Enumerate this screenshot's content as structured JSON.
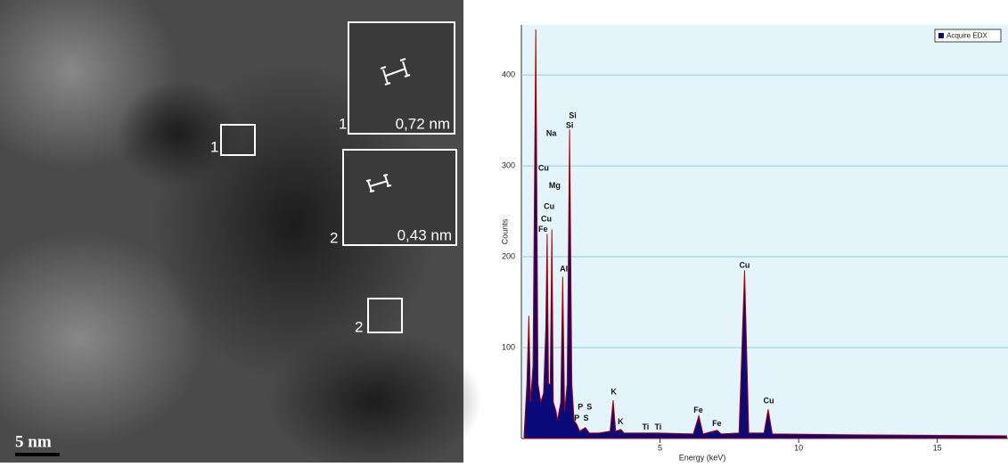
{
  "image": {
    "regions": [
      {
        "label": "1"
      },
      {
        "label": "2"
      }
    ],
    "insets": [
      {
        "label": "1",
        "scale": "0,72 nm"
      },
      {
        "label": "2",
        "scale": "0,43 nm"
      }
    ],
    "scale_bar": "5 nm"
  },
  "chart_data": {
    "type": "area",
    "xlabel": "Energy (keV)",
    "ylabel": "Counts",
    "xlim": [
      0,
      17.55
    ],
    "ylim": [
      0,
      455
    ],
    "xticks": [
      5,
      10,
      15
    ],
    "yticks": [
      100,
      200,
      300,
      400
    ],
    "grid": true,
    "legend": "top-right",
    "series": [
      {
        "name": "Acquire EDX",
        "color": "#0a0a7a",
        "edge": "#b00000",
        "x": [
          0.1,
          0.2,
          0.27,
          0.33,
          0.42,
          0.52,
          0.6,
          0.7,
          0.8,
          0.88,
          0.93,
          0.98,
          1.04,
          1.1,
          1.15,
          1.25,
          1.3,
          1.42,
          1.49,
          1.56,
          1.65,
          1.74,
          1.82,
          1.9,
          2.01,
          2.1,
          2.31,
          2.45,
          2.8,
          3.2,
          3.31,
          3.4,
          3.59,
          3.7,
          4.5,
          4.93,
          6.2,
          6.4,
          6.55,
          7.06,
          7.2,
          7.85,
          8.05,
          8.2,
          8.75,
          8.9,
          9.05,
          12,
          17.5
        ],
        "values": [
          5,
          60,
          135,
          40,
          80,
          450,
          60,
          40,
          50,
          120,
          225,
          60,
          60,
          230,
          40,
          30,
          20,
          40,
          178,
          30,
          60,
          340,
          60,
          20,
          15,
          8,
          12,
          6,
          6,
          8,
          42,
          8,
          10,
          6,
          6,
          6,
          5,
          25,
          5,
          9,
          5,
          6,
          185,
          6,
          6,
          32,
          5,
          4,
          3
        ]
      }
    ],
    "annotations": [
      {
        "text": "Si",
        "x": 1.85,
        "y": 355
      },
      {
        "text": "Si",
        "x": 1.74,
        "y": 344
      },
      {
        "text": "Na",
        "x": 1.08,
        "y": 335
      },
      {
        "text": "Cu",
        "x": 0.8,
        "y": 297
      },
      {
        "text": "Mg",
        "x": 1.2,
        "y": 278
      },
      {
        "text": "Cu",
        "x": 1.0,
        "y": 255
      },
      {
        "text": "Cu",
        "x": 0.9,
        "y": 241
      },
      {
        "text": "Fe",
        "x": 0.78,
        "y": 230
      },
      {
        "text": "Al",
        "x": 1.53,
        "y": 186
      },
      {
        "text": "P",
        "x": 2.13,
        "y": 34
      },
      {
        "text": "S",
        "x": 2.45,
        "y": 34
      },
      {
        "text": "P",
        "x": 2.0,
        "y": 22
      },
      {
        "text": "S",
        "x": 2.33,
        "y": 22
      },
      {
        "text": "K",
        "x": 3.33,
        "y": 51
      },
      {
        "text": "K",
        "x": 3.58,
        "y": 18
      },
      {
        "text": "Ti",
        "x": 4.48,
        "y": 12
      },
      {
        "text": "Ti",
        "x": 4.93,
        "y": 12
      },
      {
        "text": "Fe",
        "x": 6.38,
        "y": 31
      },
      {
        "text": "Fe",
        "x": 7.05,
        "y": 16
      },
      {
        "text": "Cu",
        "x": 8.05,
        "y": 190
      },
      {
        "text": "Cu",
        "x": 8.92,
        "y": 41
      }
    ]
  }
}
